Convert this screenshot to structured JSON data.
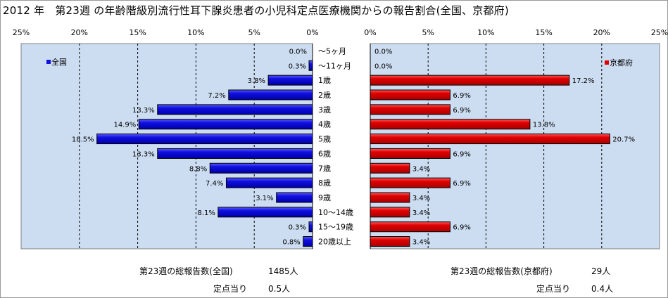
{
  "title": "2012 年　第23週 の年齢階級別流行性耳下腺炎患者の小児科定点医療機関からの報告割合(全国、京都府)",
  "colors": {
    "zenkoku": "#1010e0",
    "kyoto": "#e00000",
    "plot_bg": "#ccddf2"
  },
  "chart_data": [
    {
      "type": "bar",
      "orientation": "horizontal",
      "direction": "right-to-left",
      "legend": "全国",
      "legend_position": "top-left",
      "xlim": [
        0,
        25
      ],
      "ticks": [
        "25%",
        "20%",
        "15%",
        "10%",
        "5%",
        "0%"
      ],
      "grid": true,
      "categories": [
        "～5ヶ月",
        "～11ヶ月",
        "1歳",
        "2歳",
        "3歳",
        "4歳",
        "5歳",
        "6歳",
        "7歳",
        "8歳",
        "9歳",
        "10～14歳",
        "15～19歳",
        "20歳以上"
      ],
      "values": [
        0.0,
        0.3,
        3.8,
        7.2,
        13.3,
        14.9,
        18.5,
        13.3,
        8.8,
        7.4,
        3.1,
        8.1,
        0.3,
        0.8
      ],
      "labels": [
        "0.0%",
        "0.3%",
        "3.8%",
        "7.2%",
        "13.3%",
        "14.9%",
        "18.5%",
        "13.3%",
        "8.8%",
        "7.4%",
        "3.1%",
        "8.1%",
        "0.3%",
        "0.8%"
      ]
    },
    {
      "type": "bar",
      "orientation": "horizontal",
      "direction": "left-to-right",
      "legend": "京都府",
      "legend_position": "top-right",
      "xlim": [
        0,
        25
      ],
      "ticks": [
        "0%",
        "5%",
        "10%",
        "15%",
        "20%",
        "25%"
      ],
      "grid": true,
      "categories": [
        "～5ヶ月",
        "～11ヶ月",
        "1歳",
        "2歳",
        "3歳",
        "4歳",
        "5歳",
        "6歳",
        "7歳",
        "8歳",
        "9歳",
        "10～14歳",
        "15～19歳",
        "20歳以上"
      ],
      "values": [
        0.0,
        0.0,
        17.2,
        6.9,
        6.9,
        13.8,
        20.7,
        6.9,
        3.4,
        6.9,
        3.4,
        3.4,
        6.9,
        3.4
      ],
      "labels": [
        "0.0%",
        "0.0%",
        "17.2%",
        "6.9%",
        "6.9%",
        "13.8%",
        "20.7%",
        "6.9%",
        "3.4%",
        "6.9%",
        "3.4%",
        "3.4%",
        "6.9%",
        "3.4%"
      ]
    }
  ],
  "footer": {
    "left_total_label": "第23週の総報告数(全国)",
    "left_total_value": "1485人",
    "left_per_label": "定点当り",
    "left_per_value": "0.5人",
    "right_total_label": "第23週の総報告数(京都府)",
    "right_total_value": "29人",
    "right_per_label": "定点当り",
    "right_per_value": "0.4人"
  }
}
